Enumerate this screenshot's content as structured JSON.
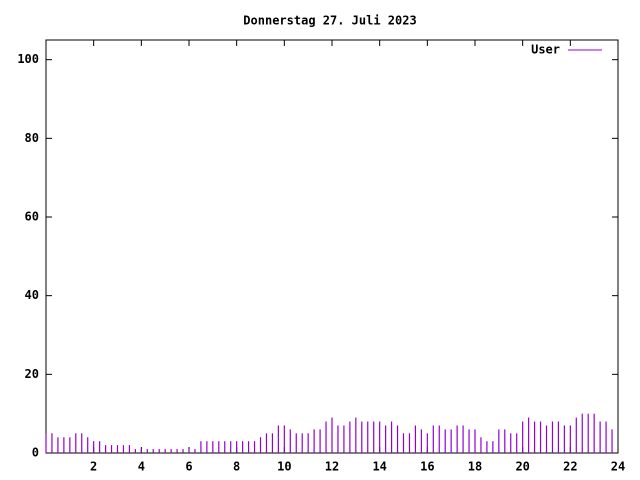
{
  "chart_data": {
    "type": "impulses",
    "title": "Donnerstag 27. Juli 2023",
    "x": [
      0,
      0.25,
      0.5,
      0.75,
      1,
      1.25,
      1.5,
      1.75,
      2,
      2.25,
      2.5,
      2.75,
      3,
      3.25,
      3.5,
      3.75,
      4,
      4.25,
      4.5,
      4.75,
      5,
      5.25,
      5.5,
      5.75,
      6,
      6.25,
      6.5,
      6.75,
      7,
      7.25,
      7.5,
      7.75,
      8,
      8.25,
      8.5,
      8.75,
      9,
      9.25,
      9.5,
      9.75,
      10,
      10.25,
      10.5,
      10.75,
      11,
      11.25,
      11.5,
      11.75,
      12,
      12.25,
      12.5,
      12.75,
      13,
      13.25,
      13.5,
      13.75,
      14,
      14.25,
      14.5,
      14.75,
      15,
      15.25,
      15.5,
      15.75,
      16,
      16.25,
      16.5,
      16.75,
      17,
      17.25,
      17.5,
      17.75,
      18,
      18.25,
      18.5,
      18.75,
      19,
      19.25,
      19.5,
      19.75,
      20,
      20.25,
      20.5,
      20.75,
      21,
      21.25,
      21.5,
      21.75,
      22,
      22.25,
      22.5,
      22.75,
      23,
      23.25,
      23.5,
      23.75
    ],
    "series": [
      {
        "name": "User",
        "color": "#9400d3",
        "values": [
          5,
          5,
          4,
          4,
          4,
          5,
          5,
          4,
          3,
          3,
          2,
          2,
          2,
          2,
          2,
          1,
          1,
          1,
          1,
          1,
          1,
          1,
          1,
          1,
          1,
          1,
          3,
          3,
          3,
          3,
          3,
          3,
          3,
          3,
          3,
          3,
          4,
          5,
          5,
          7,
          7,
          6,
          5,
          5,
          5,
          6,
          6,
          8,
          9,
          7,
          7,
          8,
          9,
          8,
          8,
          8,
          8,
          7,
          8,
          7,
          5,
          5,
          7,
          6,
          5,
          7,
          7,
          6,
          6,
          7,
          7,
          6,
          6,
          4,
          3,
          3,
          6,
          6,
          5,
          5,
          8,
          9,
          8,
          8,
          7,
          8,
          8,
          7,
          7,
          9,
          10,
          10,
          10,
          8,
          8,
          6
        ]
      }
    ],
    "xlim": [
      0,
      24
    ],
    "xticks": [
      2,
      4,
      6,
      8,
      10,
      12,
      14,
      16,
      18,
      20,
      22,
      24
    ],
    "ylim": [
      0,
      105
    ],
    "yticks": [
      0,
      20,
      40,
      60,
      80,
      100
    ],
    "grid": false,
    "legend": "top-right"
  }
}
